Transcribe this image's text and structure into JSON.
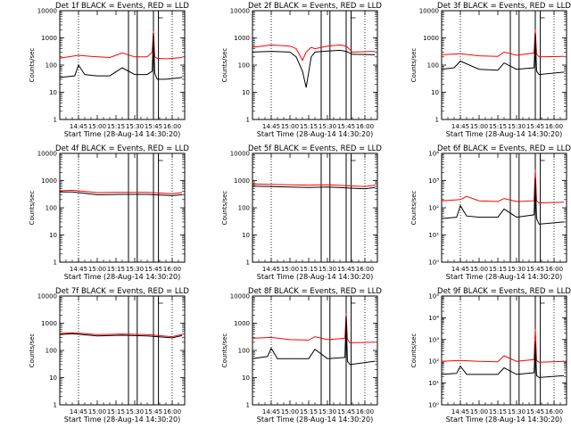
{
  "colors": {
    "events": "#000000",
    "lld": "#ff0000"
  },
  "chart_data": [
    {
      "type": "line",
      "title": "Det 1f BLACK = Events, RED = LLD",
      "xlabel": "Start Time (28-Aug-14 14:30:20)",
      "ylabel": "Counts/sec",
      "yscale": "log",
      "ylim": [
        1,
        10000
      ],
      "ytick_labels": [
        "1",
        "10",
        "100",
        "1000",
        "10000"
      ],
      "xlim": [
        "14:30",
        "16:10"
      ],
      "xtick_labels": [
        "14:45",
        "15:00",
        "15:15",
        "15:30",
        "15:45",
        "16:00"
      ],
      "dotted_lines": [
        "14:45",
        "16:00"
      ],
      "vertical_lines": [
        "15:25",
        "15:32",
        "15:45",
        "15:49"
      ],
      "series": [
        {
          "color": "red",
          "x": [
            "14:30",
            "14:45",
            "14:55",
            "15:10",
            "15:20",
            "15:30",
            "15:40",
            "15:44",
            "15:45",
            "15:46",
            "15:48",
            "15:55",
            "16:08"
          ],
          "y": [
            180,
            230,
            210,
            190,
            280,
            200,
            200,
            300,
            1800,
            200,
            180,
            170,
            190
          ]
        },
        {
          "color": "black",
          "x": [
            "14:30",
            "14:42",
            "14:45",
            "14:50",
            "15:00",
            "15:10",
            "15:20",
            "15:30",
            "15:40",
            "15:44",
            "15:45",
            "15:46",
            "15:48",
            "15:55",
            "16:08"
          ],
          "y": [
            35,
            40,
            100,
            45,
            40,
            40,
            80,
            45,
            45,
            60,
            1500,
            50,
            30,
            30,
            35
          ]
        }
      ]
    },
    {
      "type": "line",
      "title": "Det 2f BLACK = Events, RED = LLD",
      "xlabel": "Start Time (28-Aug-14 14:30:20)",
      "ylabel": "Counts/sec",
      "yscale": "log",
      "ylim": [
        1,
        10000
      ],
      "ytick_labels": [
        "1",
        "10",
        "100",
        "1000",
        "10000"
      ],
      "xlim": [
        "14:30",
        "16:10"
      ],
      "xtick_labels": [
        "14:45",
        "15:00",
        "15:15",
        "15:30",
        "15:45",
        "16:00"
      ],
      "dotted_lines": [
        "14:45",
        "16:00"
      ],
      "vertical_lines": [
        "15:25",
        "15:32",
        "15:45",
        "15:49"
      ],
      "series": [
        {
          "color": "red",
          "x": [
            "14:30",
            "14:45",
            "15:00",
            "15:05",
            "15:10",
            "15:13",
            "15:17",
            "15:20",
            "15:30",
            "15:40",
            "15:45",
            "15:50",
            "16:08"
          ],
          "y": [
            450,
            550,
            500,
            400,
            150,
            300,
            450,
            400,
            500,
            550,
            500,
            300,
            320
          ]
        },
        {
          "color": "black",
          "x": [
            "14:30",
            "14:45",
            "15:00",
            "15:05",
            "15:10",
            "15:13",
            "15:17",
            "15:20",
            "15:30",
            "15:40",
            "15:45",
            "15:50",
            "16:08"
          ],
          "y": [
            300,
            320,
            300,
            200,
            60,
            15,
            200,
            300,
            330,
            350,
            320,
            250,
            240
          ]
        }
      ]
    },
    {
      "type": "line",
      "title": "Det 3f BLACK = Events, RED = LLD",
      "xlabel": "Start Time (28-Aug-14 14:30:20)",
      "ylabel": "Counts/sec",
      "yscale": "log",
      "ylim": [
        1,
        10000
      ],
      "ytick_labels": [
        "1",
        "10",
        "100",
        "1000",
        "10000"
      ],
      "xlim": [
        "14:30",
        "16:10"
      ],
      "xtick_labels": [
        "14:45",
        "15:00",
        "15:15",
        "15:30",
        "15:45",
        "16:00"
      ],
      "dotted_lines": [
        "14:45",
        "16:00"
      ],
      "vertical_lines": [
        "15:25",
        "15:32",
        "15:45",
        "15:49"
      ],
      "series": [
        {
          "color": "red",
          "x": [
            "14:30",
            "14:45",
            "15:00",
            "15:15",
            "15:20",
            "15:30",
            "15:44",
            "15:45",
            "15:46",
            "15:48",
            "16:08"
          ],
          "y": [
            240,
            260,
            220,
            210,
            300,
            230,
            280,
            2000,
            260,
            200,
            210
          ]
        },
        {
          "color": "black",
          "x": [
            "14:30",
            "14:40",
            "14:45",
            "15:00",
            "15:15",
            "15:20",
            "15:30",
            "15:44",
            "15:45",
            "15:46",
            "15:48",
            "16:08"
          ],
          "y": [
            70,
            80,
            140,
            70,
            65,
            120,
            70,
            80,
            1500,
            60,
            45,
            55
          ]
        }
      ]
    },
    {
      "type": "line",
      "title": "Det 4f BLACK = Events, RED = LLD",
      "xlabel": "Start Time (28-Aug-14 14:30:20)",
      "ylabel": "Counts/sec",
      "yscale": "log",
      "ylim": [
        1,
        10000
      ],
      "ytick_labels": [
        "1",
        "10",
        "100",
        "1000",
        "10000"
      ],
      "xlim": [
        "14:30",
        "16:10"
      ],
      "xtick_labels": [
        "14:45",
        "15:00",
        "15:15",
        "15:30",
        "15:45",
        "16:00"
      ],
      "dotted_lines": [
        "14:45",
        "16:00"
      ],
      "vertical_lines": [
        "15:25",
        "15:32",
        "15:45",
        "15:49"
      ],
      "series": [
        {
          "color": "red",
          "x": [
            "14:30",
            "14:40",
            "15:00",
            "15:20",
            "15:40",
            "16:00",
            "16:08"
          ],
          "y": [
            420,
            440,
            360,
            370,
            370,
            330,
            360
          ]
        },
        {
          "color": "black",
          "x": [
            "14:30",
            "14:40",
            "15:00",
            "15:20",
            "15:40",
            "16:00",
            "16:08"
          ],
          "y": [
            380,
            380,
            300,
            310,
            310,
            280,
            300
          ]
        }
      ]
    },
    {
      "type": "line",
      "title": "Det 5f BLACK = Events, RED = LLD",
      "xlabel": "Start Time (28-Aug-14 14:30:20)",
      "ylabel": "Counts/sec",
      "yscale": "log",
      "ylim": [
        1,
        10000
      ],
      "ytick_labels": [
        "1",
        "10",
        "100",
        "1000",
        "10000"
      ],
      "xlim": [
        "14:30",
        "16:10"
      ],
      "xtick_labels": [
        "14:45",
        "15:00",
        "15:15",
        "15:30",
        "15:45",
        "16:00"
      ],
      "dotted_lines": [
        "14:45",
        "16:00"
      ],
      "vertical_lines": [
        "15:25",
        "15:32",
        "15:45",
        "15:49"
      ],
      "series": [
        {
          "color": "red",
          "x": [
            "14:30",
            "14:45",
            "15:15",
            "15:30",
            "15:45",
            "16:00",
            "16:08"
          ],
          "y": [
            750,
            720,
            680,
            700,
            650,
            600,
            680
          ]
        },
        {
          "color": "black",
          "x": [
            "14:30",
            "14:45",
            "15:15",
            "15:30",
            "15:45",
            "16:00",
            "16:08"
          ],
          "y": [
            620,
            600,
            560,
            580,
            540,
            500,
            560
          ]
        }
      ]
    },
    {
      "type": "line",
      "title": "Det 6f BLACK = Events, RED = LLD",
      "xlabel": "Start Time (28-Aug-14 14:30:20)",
      "ylabel": "Counts/sec",
      "yscale": "log",
      "ylim": [
        1,
        10000
      ],
      "ytick_labels": [
        "10⁰",
        "10¹",
        "10²",
        "10³",
        "10⁴"
      ],
      "xlim": [
        "14:30",
        "16:10"
      ],
      "xtick_labels": [
        "14:45",
        "15:00",
        "15:15",
        "15:30",
        "15:45",
        "16:00"
      ],
      "dotted_lines": [
        "14:45",
        "16:00"
      ],
      "vertical_lines": [
        "15:25",
        "15:32",
        "15:45",
        "15:49"
      ],
      "series": [
        {
          "color": "red",
          "x": [
            "14:30",
            "14:45",
            "14:50",
            "15:00",
            "15:15",
            "15:20",
            "15:30",
            "15:44",
            "15:45",
            "15:46",
            "15:48",
            "16:08"
          ],
          "y": [
            180,
            200,
            260,
            180,
            170,
            220,
            170,
            180,
            2500,
            180,
            150,
            160
          ]
        },
        {
          "color": "black",
          "x": [
            "14:30",
            "14:42",
            "14:45",
            "14:50",
            "15:00",
            "15:15",
            "15:20",
            "15:30",
            "15:44",
            "15:45",
            "15:46",
            "15:48",
            "16:08"
          ],
          "y": [
            40,
            45,
            120,
            50,
            45,
            45,
            90,
            45,
            55,
            1200,
            40,
            25,
            30
          ]
        }
      ]
    },
    {
      "type": "line",
      "title": "Det 7f BLACK = Events, RED = LLD",
      "xlabel": "Start Time (28-Aug-14 14:30:20)",
      "ylabel": "Counts/sec",
      "yscale": "log",
      "ylim": [
        1,
        10000
      ],
      "ytick_labels": [
        "1",
        "10",
        "100",
        "1000",
        "10000"
      ],
      "xlim": [
        "14:30",
        "16:10"
      ],
      "xtick_labels": [
        "14:45",
        "15:00",
        "15:15",
        "15:30",
        "15:45",
        "16:00"
      ],
      "dotted_lines": [
        "14:45",
        "16:00"
      ],
      "vertical_lines": [
        "15:25",
        "15:32",
        "15:45",
        "15:49"
      ],
      "series": [
        {
          "color": "red",
          "x": [
            "14:30",
            "14:40",
            "15:00",
            "15:20",
            "15:40",
            "16:00",
            "16:08"
          ],
          "y": [
            420,
            450,
            380,
            400,
            380,
            320,
            390
          ]
        },
        {
          "color": "black",
          "x": [
            "14:30",
            "14:40",
            "15:00",
            "15:20",
            "15:40",
            "16:00",
            "16:08"
          ],
          "y": [
            380,
            410,
            340,
            360,
            340,
            290,
            350
          ]
        }
      ]
    },
    {
      "type": "line",
      "title": "Det 8f BLACK = Events, RED = LLD",
      "xlabel": "Start Time (28-Aug-14 14:30:20)",
      "ylabel": "Counts/sec",
      "yscale": "log",
      "ylim": [
        1,
        10000
      ],
      "ytick_labels": [
        "1",
        "10",
        "100",
        "1000",
        "10000"
      ],
      "xlim": [
        "14:30",
        "16:10"
      ],
      "xtick_labels": [
        "14:45",
        "15:00",
        "15:15",
        "15:30",
        "15:45",
        "16:00"
      ],
      "dotted_lines": [
        "14:45",
        "16:00"
      ],
      "vertical_lines": [
        "15:25",
        "15:32",
        "15:45",
        "15:49"
      ],
      "series": [
        {
          "color": "red",
          "x": [
            "14:30",
            "14:45",
            "15:00",
            "15:15",
            "15:20",
            "15:30",
            "15:44",
            "15:45",
            "15:46",
            "15:48",
            "16:08"
          ],
          "y": [
            280,
            300,
            250,
            240,
            320,
            250,
            280,
            2300,
            260,
            190,
            200
          ]
        },
        {
          "color": "black",
          "x": [
            "14:30",
            "14:42",
            "14:45",
            "14:50",
            "15:00",
            "15:15",
            "15:20",
            "15:30",
            "15:44",
            "15:45",
            "15:46",
            "15:48",
            "16:08"
          ],
          "y": [
            50,
            60,
            120,
            50,
            50,
            50,
            110,
            50,
            55,
            1800,
            40,
            30,
            40
          ]
        }
      ]
    },
    {
      "type": "line",
      "title": "Det 9f BLACK = Events, RED = LLD",
      "xlabel": "Start Time (28-Aug-14 14:30:20)",
      "ylabel": "Counts/sec",
      "yscale": "log",
      "ylim": [
        1,
        100000
      ],
      "ytick_labels": [
        "10⁰",
        "10¹",
        "10²",
        "10³",
        "10⁴",
        "10⁵"
      ],
      "xlim": [
        "14:30",
        "16:10"
      ],
      "xtick_labels": [
        "14:45",
        "15:00",
        "15:15",
        "15:30",
        "15:45",
        "16:00"
      ],
      "dotted_lines": [
        "14:45",
        "16:00"
      ],
      "vertical_lines": [
        "15:25",
        "15:32",
        "15:45",
        "15:49"
      ],
      "series": [
        {
          "color": "red",
          "x": [
            "14:30",
            "14:45",
            "15:00",
            "15:15",
            "15:20",
            "15:30",
            "15:44",
            "15:45",
            "15:46",
            "15:48",
            "16:08"
          ],
          "y": [
            100,
            110,
            100,
            95,
            180,
            100,
            120,
            3000,
            110,
            90,
            100
          ]
        },
        {
          "color": "black",
          "x": [
            "14:30",
            "14:42",
            "14:45",
            "14:50",
            "15:00",
            "15:15",
            "15:20",
            "15:30",
            "15:44",
            "15:45",
            "15:46",
            "15:48",
            "16:08"
          ],
          "y": [
            25,
            28,
            60,
            25,
            25,
            25,
            50,
            25,
            30,
            800,
            22,
            18,
            22
          ]
        }
      ]
    }
  ]
}
